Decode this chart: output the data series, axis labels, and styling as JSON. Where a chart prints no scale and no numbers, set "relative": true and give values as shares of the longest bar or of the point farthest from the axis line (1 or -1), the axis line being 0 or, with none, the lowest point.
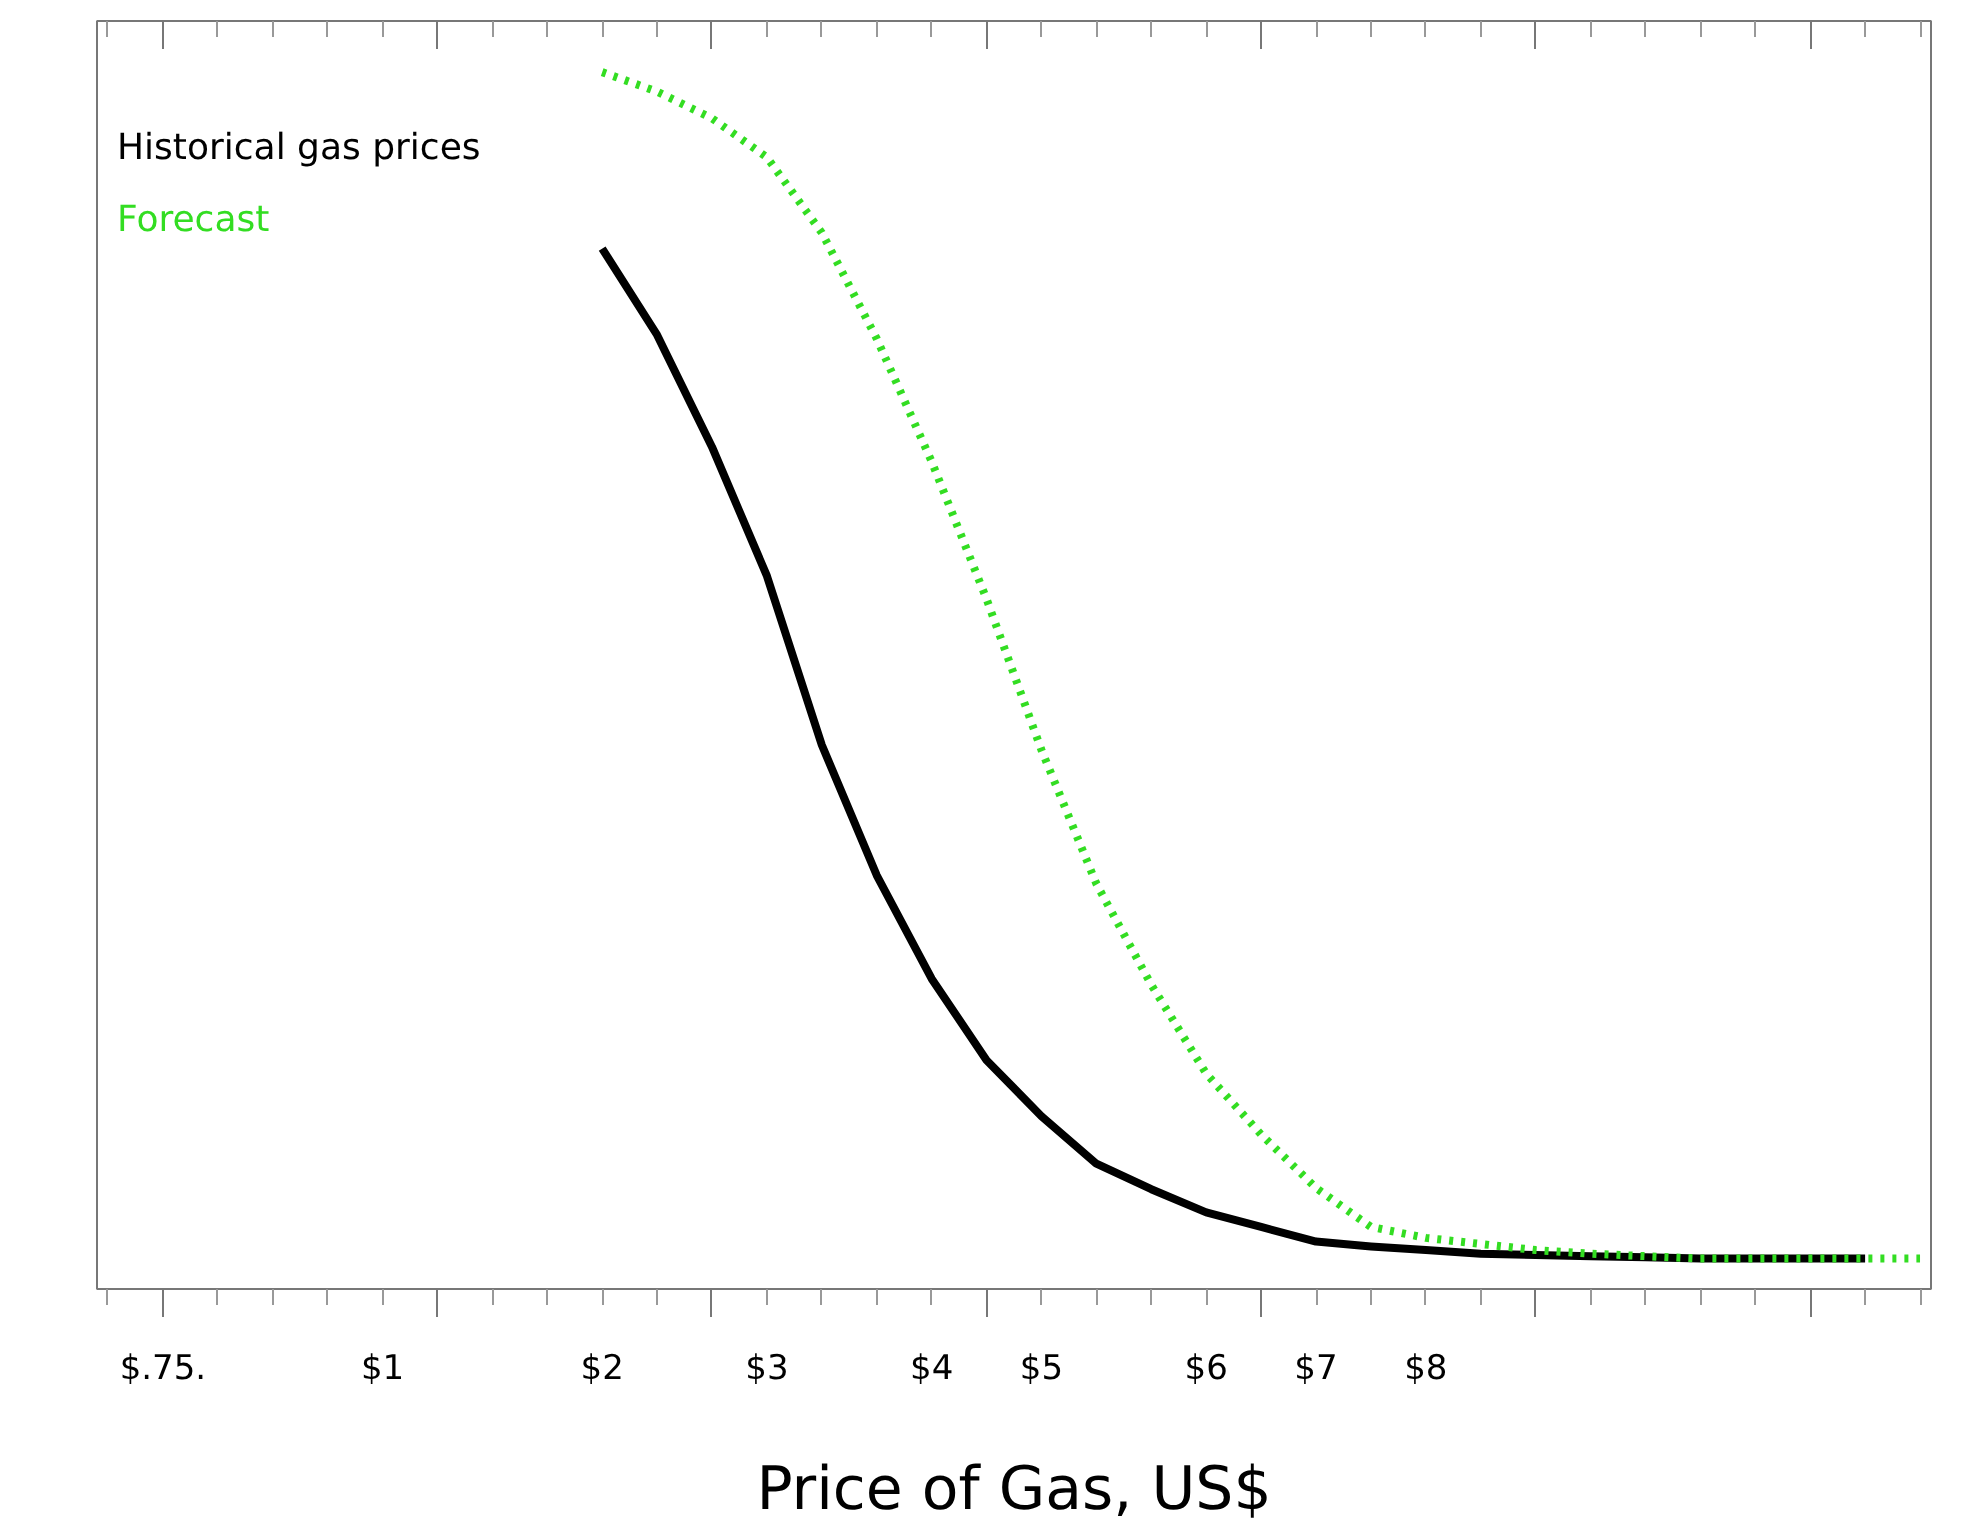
{
  "chart_data": {
    "type": "line",
    "relative": true,
    "xlabel": "Price of Gas, US$",
    "grid": false,
    "categories": [
      null,
      "$.75.",
      null,
      null,
      null,
      "$1",
      null,
      null,
      null,
      "$2",
      null,
      null,
      "$3",
      null,
      null,
      "$4",
      null,
      "$5",
      null,
      null,
      "$6",
      null,
      "$7",
      null,
      "$8",
      null,
      null,
      null,
      null,
      null,
      null,
      null,
      null,
      null
    ],
    "series": [
      {
        "name": "Historical gas prices",
        "color": "#000000",
        "line_style": "solid",
        "values": [
          null,
          null,
          null,
          null,
          null,
          null,
          null,
          null,
          null,
          0.855,
          0.784,
          0.692,
          0.586,
          0.447,
          0.34,
          0.255,
          0.188,
          0.142,
          0.103,
          0.082,
          0.063,
          0.051,
          0.039,
          0.035,
          0.032,
          0.029,
          0.028,
          0.027,
          0.026,
          0.025,
          0.025,
          0.025,
          0.025,
          null
        ]
      },
      {
        "name": "Forecast",
        "color": "#33dd22",
        "line_style": "dotted",
        "values": [
          null,
          null,
          null,
          null,
          null,
          null,
          null,
          null,
          null,
          1.0,
          0.984,
          0.962,
          0.93,
          0.868,
          0.781,
          0.68,
          0.567,
          0.443,
          0.333,
          0.25,
          0.177,
          0.127,
          0.083,
          0.051,
          0.042,
          0.037,
          0.032,
          0.029,
          0.027,
          0.025,
          0.025,
          0.025,
          0.025,
          0.025
        ]
      }
    ]
  }
}
